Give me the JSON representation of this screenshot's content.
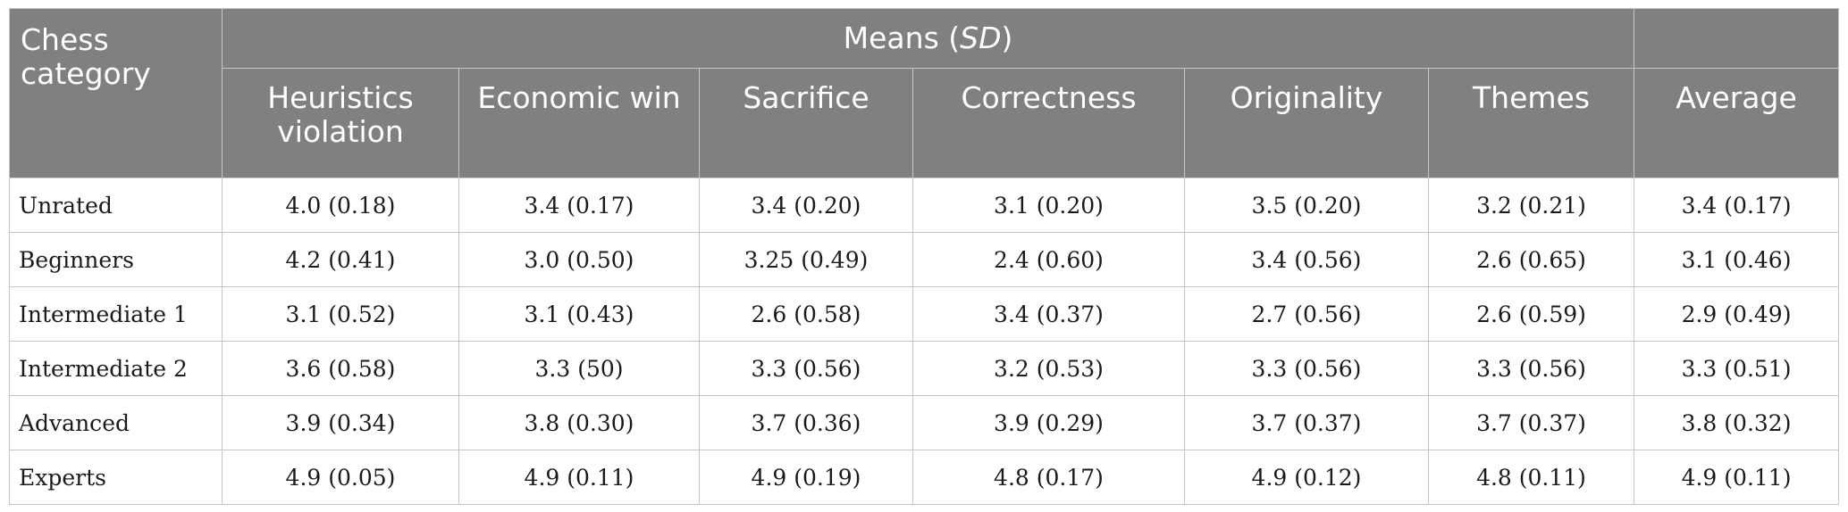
{
  "header": {
    "category_label": "Chess category",
    "means_label": "Means (",
    "means_sd": "SD",
    "means_close": ")",
    "columns": [
      "Heuristics violation",
      "Economic win",
      "Sacrifice",
      "Correctness",
      "Originality",
      "Themes",
      "Average"
    ]
  },
  "rows": [
    {
      "category": "Unrated",
      "values": [
        "4.0 (0.18)",
        "3.4 (0.17)",
        "3.4 (0.20)",
        "3.1 (0.20)",
        "3.5 (0.20)",
        "3.2 (0.21)",
        "3.4 (0.17)"
      ]
    },
    {
      "category": "Beginners",
      "values": [
        "4.2 (0.41)",
        "3.0 (0.50)",
        "3.25 (0.49)",
        "2.4 (0.60)",
        "3.4 (0.56)",
        "2.6 (0.65)",
        "3.1 (0.46)"
      ]
    },
    {
      "category": "Intermediate 1",
      "values": [
        "3.1 (0.52)",
        "3.1 (0.43)",
        "2.6 (0.58)",
        "3.4 (0.37)",
        "2.7 (0.56)",
        "2.6 (0.59)",
        "2.9 (0.49)"
      ]
    },
    {
      "category": "Intermediate 2",
      "values": [
        "3.6 (0.58)",
        "3.3 (50)",
        "3.3 (0.56)",
        "3.2 (0.53)",
        "3.3 (0.56)",
        "3.3 (0.56)",
        "3.3 (0.51)"
      ]
    },
    {
      "category": "Advanced",
      "values": [
        "3.9 (0.34)",
        "3.8 (0.30)",
        "3.7 (0.36)",
        "3.9 (0.29)",
        "3.7 (0.37)",
        "3.7 (0.37)",
        "3.8 (0.32)"
      ]
    },
    {
      "category": "Experts",
      "values": [
        "4.9 (0.05)",
        "4.9 (0.11)",
        "4.9 (0.19)",
        "4.8 (0.17)",
        "4.9 (0.12)",
        "4.8 (0.11)",
        "4.9 (0.11)"
      ]
    }
  ]
}
